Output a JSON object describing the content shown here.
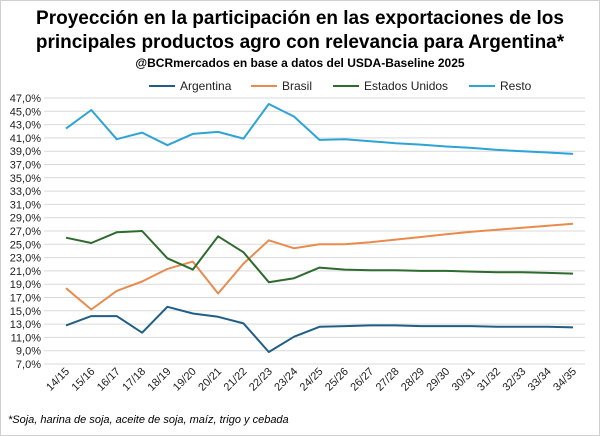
{
  "title_line1": "Proyección en la participación en las exportaciones de los",
  "title_line2": "principales productos agro con relevancia para Argentina*",
  "subtitle": "@BCRmercados en base a datos del USDA-Baseline 2025",
  "footnote": "*Soja, harina de soja, aceite de soja, maíz, trigo y cebada",
  "chart_data": {
    "type": "line",
    "categories": [
      "14/15",
      "15/16",
      "16/17",
      "17/18",
      "18/19",
      "19/20",
      "20/21",
      "21/22",
      "22/23",
      "23/24",
      "24/25",
      "25/26",
      "26/27",
      "27/28",
      "28/29",
      "29/30",
      "30/31",
      "31/32",
      "32/33",
      "33/34",
      "34/35"
    ],
    "ylim": [
      7,
      47
    ],
    "yticks": [
      7,
      9,
      11,
      13,
      15,
      17,
      19,
      21,
      23,
      25,
      27,
      29,
      31,
      33,
      35,
      37,
      39,
      41,
      43,
      45,
      47
    ],
    "ytick_labels": [
      "7,0%",
      "9,0%",
      "11,0%",
      "13,0%",
      "15,0%",
      "17,0%",
      "19,0%",
      "21,0%",
      "23,0%",
      "25,0%",
      "27,0%",
      "29,0%",
      "31,0%",
      "33,0%",
      "35,0%",
      "37,0%",
      "39,0%",
      "41,0%",
      "43,0%",
      "45,0%",
      "47,0%"
    ],
    "grid": true,
    "legend_position": "top",
    "series": [
      {
        "name": "Argentina",
        "color": "#1f5f86",
        "values": [
          12.8,
          14.2,
          14.2,
          11.7,
          15.6,
          14.6,
          14.1,
          13.1,
          8.8,
          11.1,
          12.6,
          12.7,
          12.8,
          12.8,
          12.7,
          12.7,
          12.7,
          12.6,
          12.6,
          12.6,
          12.5
        ]
      },
      {
        "name": "Brasil",
        "color": "#e98b4e",
        "values": [
          18.4,
          15.2,
          18.0,
          19.4,
          21.3,
          22.4,
          17.6,
          22.1,
          25.6,
          24.4,
          25.0,
          25.0,
          25.3,
          25.7,
          26.1,
          26.5,
          26.9,
          27.2,
          27.5,
          27.8,
          28.1
        ]
      },
      {
        "name": "Estados Unidos",
        "color": "#2e6b2e",
        "values": [
          26.0,
          25.2,
          26.8,
          27.0,
          22.9,
          21.2,
          26.2,
          23.8,
          19.3,
          19.9,
          21.5,
          21.2,
          21.1,
          21.1,
          21.0,
          21.0,
          20.9,
          20.8,
          20.8,
          20.7,
          20.6
        ]
      },
      {
        "name": "Resto",
        "color": "#2ea3d6",
        "values": [
          42.4,
          45.2,
          40.8,
          41.8,
          39.9,
          41.6,
          41.9,
          40.9,
          46.1,
          44.2,
          40.7,
          40.8,
          40.5,
          40.2,
          40.0,
          39.7,
          39.5,
          39.2,
          39.0,
          38.8,
          38.6
        ]
      }
    ]
  }
}
